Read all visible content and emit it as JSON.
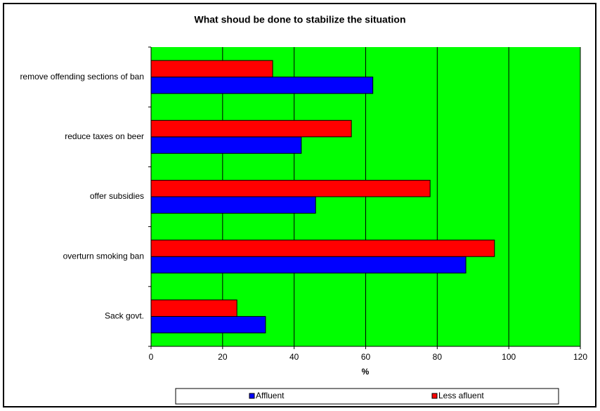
{
  "chart_data": {
    "type": "hbar",
    "title": "What shoud be done to stabilize the situation",
    "x_label": "%",
    "categories": [
      "remove offending sections of ban",
      "reduce taxes on beer",
      "offer subsidies",
      "overturn smoking ban",
      "Sack govt."
    ],
    "series": [
      {
        "name": "Affluent",
        "color": "#0000ff",
        "values": [
          62,
          42,
          46,
          88,
          32
        ]
      },
      {
        "name": "Less afluent",
        "color": "#ff0000",
        "values": [
          34,
          56,
          78,
          96,
          24
        ]
      }
    ],
    "xlim": [
      0,
      120
    ],
    "xticks": [
      0,
      20,
      40,
      60,
      80,
      100,
      120
    ],
    "grid": true,
    "plot_background": "#00ff00",
    "legend": "bottom"
  }
}
